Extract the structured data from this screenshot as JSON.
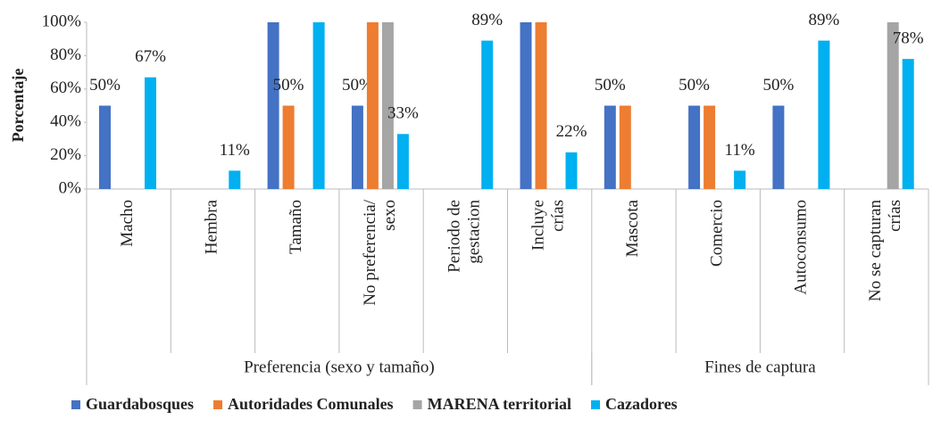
{
  "chart_data": {
    "type": "bar",
    "y_label": "Porcentaje",
    "categories": [
      "Macho",
      "Hembra",
      "Tamaño",
      "No preferencia/\nsexo",
      "Periodo de\ngestacion",
      "Incluye\ncrías",
      "Mascota",
      "Comercio",
      "Autoconsumo",
      "No se capturan\ncrías"
    ],
    "groups": [
      {
        "name": "Preferencia (sexo y tamaño)",
        "count": 6
      },
      {
        "name": "Fines de captura",
        "count": 4
      }
    ],
    "series": [
      {
        "name": "Guardabosques",
        "color": "#4472c4",
        "values": [
          50,
          0,
          100,
          50,
          0,
          100,
          50,
          50,
          50,
          0
        ],
        "value_labels": [
          "50%",
          null,
          null,
          "50%",
          null,
          null,
          "50%",
          "50%",
          "50%",
          null
        ]
      },
      {
        "name": "Autoridades Comunales",
        "color": "#ed7d31",
        "values": [
          0,
          0,
          50,
          100,
          0,
          100,
          50,
          50,
          0,
          0
        ],
        "value_labels": [
          null,
          null,
          "50%",
          null,
          null,
          null,
          null,
          null,
          null,
          null
        ]
      },
      {
        "name": "MARENA territorial",
        "color": "#a5a5a5",
        "values": [
          0,
          0,
          0,
          100,
          0,
          0,
          0,
          0,
          0,
          100
        ],
        "value_labels": [
          null,
          null,
          null,
          null,
          null,
          null,
          null,
          null,
          null,
          null
        ]
      },
      {
        "name": "Cazadores",
        "color": "#00b0f0",
        "values": [
          67,
          11,
          100,
          33,
          89,
          22,
          0,
          11,
          89,
          78
        ],
        "value_labels": [
          "67%",
          "11%",
          null,
          "33%",
          "89%",
          "22%",
          null,
          "11%",
          "89%",
          "78%"
        ]
      }
    ],
    "ylim": [
      0,
      100
    ],
    "yticks": [
      {
        "value": 0,
        "label": "0%"
      },
      {
        "value": 20,
        "label": "20%"
      },
      {
        "value": 40,
        "label": "40%"
      },
      {
        "value": 60,
        "label": "60%"
      },
      {
        "value": 80,
        "label": "80%"
      },
      {
        "value": 100,
        "label": "100%"
      }
    ],
    "legend": "bottom"
  }
}
